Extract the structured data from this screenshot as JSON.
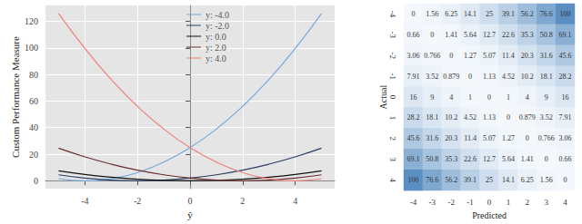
{
  "chart_data": [
    {
      "type": "line",
      "x_label": "ŷ",
      "y_label": "Custom Performance Measure",
      "x": [
        -5,
        -4,
        -3,
        -2,
        -1,
        0,
        1,
        2,
        3,
        4,
        5
      ],
      "xlim": [
        -5.5,
        5.5
      ],
      "xticks": [
        -4,
        -2,
        0,
        2,
        4
      ],
      "ylim": [
        -6,
        132
      ],
      "yticks": [
        0,
        20,
        40,
        60,
        80,
        100,
        120
      ],
      "grid": true,
      "legend": "top",
      "series": [
        {
          "name": "y: -4.0",
          "color": "#74a9e0",
          "values": [
            1.6,
            0,
            1.6,
            6.2,
            14,
            24.9,
            38.9,
            56,
            76.2,
            99.6,
            126
          ]
        },
        {
          "name": "y: -2.0",
          "color": "#2c3e66",
          "values": [
            4.5,
            2,
            0.5,
            0,
            0.5,
            2,
            4.5,
            8,
            12.5,
            18,
            24.5
          ]
        },
        {
          "name": "y: 0.0",
          "color": "#111111",
          "values": [
            7.5,
            4.8,
            2.7,
            1.2,
            0.3,
            0,
            0.3,
            1.2,
            2.7,
            4.8,
            7.5
          ]
        },
        {
          "name": "y: 2.0",
          "color": "#6b2e2e",
          "values": [
            24.5,
            18,
            12.5,
            8,
            4.5,
            2,
            0.5,
            0,
            0.5,
            2,
            4.5
          ]
        },
        {
          "name": "y: 4.0",
          "color": "#f07f7a",
          "values": [
            126,
            99.6,
            76.2,
            56,
            38.9,
            24.9,
            14,
            6.2,
            1.6,
            0,
            1.6
          ]
        }
      ]
    },
    {
      "type": "heatmap",
      "x_label": "Predicted",
      "y_label": "Actual",
      "x_categories": [
        "-4",
        "-3",
        "-2",
        "-1",
        "0",
        "1",
        "2",
        "3",
        "4"
      ],
      "y_categories": [
        "-4",
        "-3",
        "-2",
        "-1",
        "0",
        "1",
        "2",
        "3",
        "4"
      ],
      "data_labels": true,
      "color": "#5b8fc2",
      "cells": [
        [
          0,
          1.56,
          6.25,
          14.1,
          25,
          39.1,
          56.2,
          76.6,
          100
        ],
        [
          0.66,
          0,
          1.41,
          5.64,
          12.7,
          22.6,
          35.3,
          50.8,
          69.1
        ],
        [
          3.06,
          0.766,
          0,
          1.27,
          5.07,
          11.4,
          20.3,
          31.6,
          45.6
        ],
        [
          7.91,
          3.52,
          0.879,
          0,
          1.13,
          4.52,
          10.2,
          18.1,
          28.2
        ],
        [
          16,
          9,
          4,
          1,
          0,
          1,
          4,
          9,
          16
        ],
        [
          28.2,
          18.1,
          10.2,
          4.52,
          1.13,
          0,
          0.879,
          3.52,
          7.91
        ],
        [
          45.6,
          31.6,
          20.3,
          11.4,
          5.07,
          1.27,
          0,
          0.766,
          3.06
        ],
        [
          69.1,
          50.8,
          35.3,
          22.6,
          12.7,
          5.64,
          1.41,
          0,
          0.66
        ],
        [
          100,
          76.6,
          56.2,
          39.1,
          25,
          14.1,
          6.25,
          1.56,
          0
        ]
      ]
    }
  ]
}
